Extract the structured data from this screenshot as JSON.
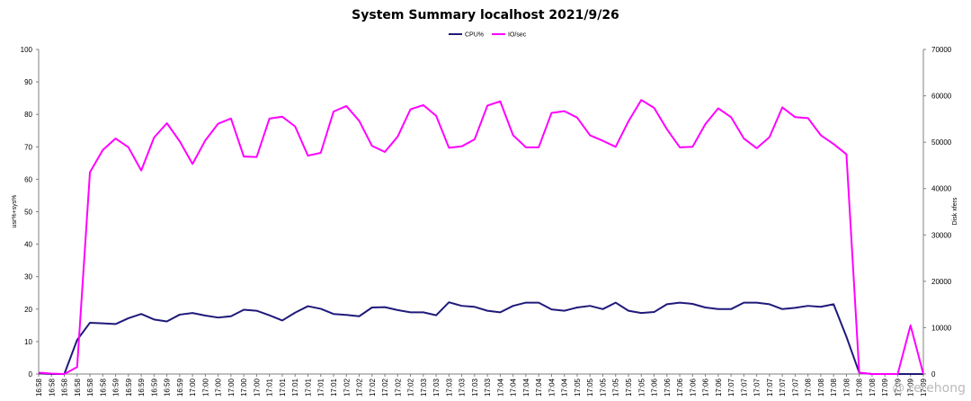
{
  "chart_data": {
    "type": "line",
    "title": "System Summary localhost  2021/9/26",
    "ylabel_left": "usr%+sys%",
    "ylabel_right": "Disk xfers",
    "ylim_left": [
      0,
      100
    ],
    "ylim_right": [
      0,
      70000
    ],
    "yticks_left": [
      0,
      10,
      20,
      30,
      40,
      50,
      60,
      70,
      80,
      90,
      100
    ],
    "yticks_right": [
      0,
      10000,
      20000,
      30000,
      40000,
      50000,
      60000,
      70000
    ],
    "legend_position": "top-center",
    "grid": false,
    "categories": [
      "16:58",
      "16:58",
      "16:58",
      "16:58",
      "16:58",
      "16:58",
      "16:59",
      "16:59",
      "16:59",
      "16:59",
      "16:59",
      "16:59",
      "17:00",
      "17:00",
      "17:00",
      "17:00",
      "17:00",
      "17:00",
      "17:01",
      "17:01",
      "17:01",
      "17:01",
      "17:01",
      "17:01",
      "17:02",
      "17:02",
      "17:02",
      "17:02",
      "17:02",
      "17:02",
      "17:03",
      "17:03",
      "17:03",
      "17:03",
      "17:03",
      "17:03",
      "17:04",
      "17:04",
      "17:04",
      "17:04",
      "17:04",
      "17:04",
      "17:05",
      "17:05",
      "17:05",
      "17:05",
      "17:05",
      "17:05",
      "17:06",
      "17:06",
      "17:06",
      "17:06",
      "17:06",
      "17:06",
      "17:07",
      "17:07",
      "17:07",
      "17:07",
      "17:07",
      "17:07",
      "17:08",
      "17:08",
      "17:08",
      "17:08",
      "17:08",
      "17:08",
      "17:09",
      "17:09",
      "17:09",
      "17:09"
    ],
    "series": [
      {
        "name": "CPU%",
        "axis": "left",
        "color": "#1f1a7a",
        "values": [
          0.2,
          0,
          0,
          10.5,
          15.8,
          15.6,
          15.4,
          17.2,
          18.5,
          16.8,
          16.2,
          18.3,
          18.8,
          18.0,
          17.4,
          17.8,
          19.8,
          19.5,
          18.1,
          16.5,
          18.9,
          20.9,
          20.1,
          18.5,
          18.2,
          17.8,
          20.5,
          20.6,
          19.7,
          19.0,
          19.0,
          18.1,
          22.1,
          21.0,
          20.7,
          19.5,
          19.0,
          21.0,
          22.0,
          22.0,
          19.9,
          19.5,
          20.5,
          21.0,
          20.0,
          22.0,
          19.5,
          18.8,
          19.1,
          21.5,
          22.0,
          21.6,
          20.5,
          20.0,
          20.0,
          22.0,
          22.0,
          21.5,
          20.0,
          20.4,
          21.0,
          20.7,
          21.5,
          11.5,
          0.4,
          0,
          0,
          0,
          0,
          0
        ],
        "values_end": "last"
      },
      {
        "name": "IO/sec",
        "axis": "right",
        "color": "#ff00ff",
        "values": [
          300,
          100,
          0,
          1500,
          43500,
          48300,
          50800,
          48900,
          43900,
          51000,
          54100,
          50200,
          45300,
          50400,
          54000,
          55100,
          46900,
          46800,
          55100,
          55500,
          53400,
          47100,
          47700,
          56600,
          57800,
          54600,
          49200,
          47900,
          51200,
          57100,
          58000,
          55700,
          48800,
          49100,
          50600,
          57900,
          58800,
          51500,
          48900,
          48900,
          56300,
          56700,
          55300,
          51500,
          50300,
          49000,
          54500,
          59100,
          57400,
          52800,
          48900,
          49000,
          53900,
          57300,
          55400,
          50800,
          48700,
          51100,
          57500,
          55400,
          55200,
          51500,
          49600,
          47400,
          300,
          0,
          0,
          0,
          10500,
          0
        ]
      }
    ]
  },
  "watermark": "@ retehong"
}
